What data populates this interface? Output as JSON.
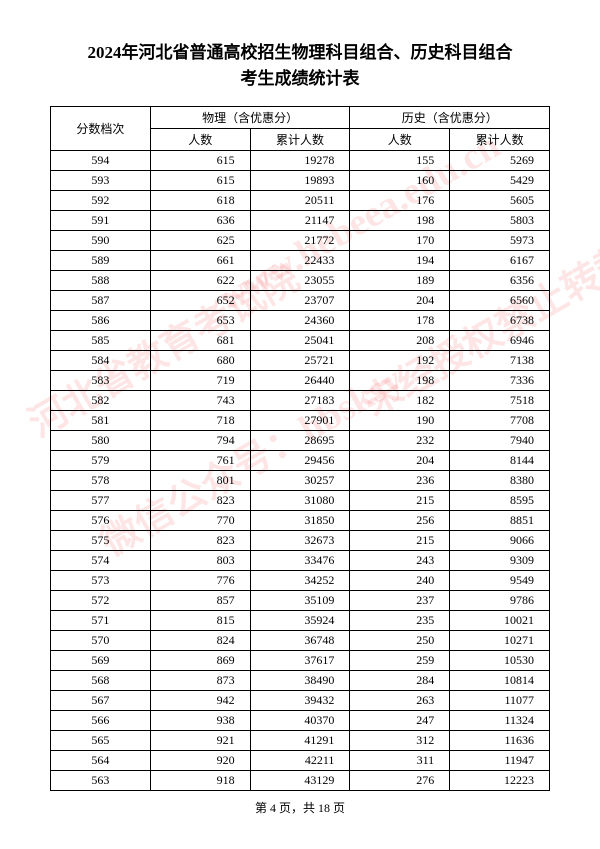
{
  "title_line1": "2024年河北省普通高校招生物理科目组合、历史科目组合",
  "title_line2": "考生成绩统计表",
  "header": {
    "score_level": "分数档次",
    "physics": "物理（含优惠分）",
    "history": "历史（含优惠分）",
    "count": "人数",
    "cumulative": "累计人数"
  },
  "rows": [
    {
      "score": "594",
      "p_count": "615",
      "p_cum": "19278",
      "h_count": "155",
      "h_cum": "5269"
    },
    {
      "score": "593",
      "p_count": "615",
      "p_cum": "19893",
      "h_count": "160",
      "h_cum": "5429"
    },
    {
      "score": "592",
      "p_count": "618",
      "p_cum": "20511",
      "h_count": "176",
      "h_cum": "5605"
    },
    {
      "score": "591",
      "p_count": "636",
      "p_cum": "21147",
      "h_count": "198",
      "h_cum": "5803"
    },
    {
      "score": "590",
      "p_count": "625",
      "p_cum": "21772",
      "h_count": "170",
      "h_cum": "5973"
    },
    {
      "score": "589",
      "p_count": "661",
      "p_cum": "22433",
      "h_count": "194",
      "h_cum": "6167"
    },
    {
      "score": "588",
      "p_count": "622",
      "p_cum": "23055",
      "h_count": "189",
      "h_cum": "6356"
    },
    {
      "score": "587",
      "p_count": "652",
      "p_cum": "23707",
      "h_count": "204",
      "h_cum": "6560"
    },
    {
      "score": "586",
      "p_count": "653",
      "p_cum": "24360",
      "h_count": "178",
      "h_cum": "6738"
    },
    {
      "score": "585",
      "p_count": "681",
      "p_cum": "25041",
      "h_count": "208",
      "h_cum": "6946"
    },
    {
      "score": "584",
      "p_count": "680",
      "p_cum": "25721",
      "h_count": "192",
      "h_cum": "7138"
    },
    {
      "score": "583",
      "p_count": "719",
      "p_cum": "26440",
      "h_count": "198",
      "h_cum": "7336"
    },
    {
      "score": "582",
      "p_count": "743",
      "p_cum": "27183",
      "h_count": "182",
      "h_cum": "7518"
    },
    {
      "score": "581",
      "p_count": "718",
      "p_cum": "27901",
      "h_count": "190",
      "h_cum": "7708"
    },
    {
      "score": "580",
      "p_count": "794",
      "p_cum": "28695",
      "h_count": "232",
      "h_cum": "7940"
    },
    {
      "score": "579",
      "p_count": "761",
      "p_cum": "29456",
      "h_count": "204",
      "h_cum": "8144"
    },
    {
      "score": "578",
      "p_count": "801",
      "p_cum": "30257",
      "h_count": "236",
      "h_cum": "8380"
    },
    {
      "score": "577",
      "p_count": "823",
      "p_cum": "31080",
      "h_count": "215",
      "h_cum": "8595"
    },
    {
      "score": "576",
      "p_count": "770",
      "p_cum": "31850",
      "h_count": "256",
      "h_cum": "8851"
    },
    {
      "score": "575",
      "p_count": "823",
      "p_cum": "32673",
      "h_count": "215",
      "h_cum": "9066"
    },
    {
      "score": "574",
      "p_count": "803",
      "p_cum": "33476",
      "h_count": "243",
      "h_cum": "9309"
    },
    {
      "score": "573",
      "p_count": "776",
      "p_cum": "34252",
      "h_count": "240",
      "h_cum": "9549"
    },
    {
      "score": "572",
      "p_count": "857",
      "p_cum": "35109",
      "h_count": "237",
      "h_cum": "9786"
    },
    {
      "score": "571",
      "p_count": "815",
      "p_cum": "35924",
      "h_count": "235",
      "h_cum": "10021"
    },
    {
      "score": "570",
      "p_count": "824",
      "p_cum": "36748",
      "h_count": "250",
      "h_cum": "10271"
    },
    {
      "score": "569",
      "p_count": "869",
      "p_cum": "37617",
      "h_count": "259",
      "h_cum": "10530"
    },
    {
      "score": "568",
      "p_count": "873",
      "p_cum": "38490",
      "h_count": "284",
      "h_cum": "10814"
    },
    {
      "score": "567",
      "p_count": "942",
      "p_cum": "39432",
      "h_count": "263",
      "h_cum": "11077"
    },
    {
      "score": "566",
      "p_count": "938",
      "p_cum": "40370",
      "h_count": "247",
      "h_cum": "11324"
    },
    {
      "score": "565",
      "p_count": "921",
      "p_cum": "41291",
      "h_count": "312",
      "h_cum": "11636"
    },
    {
      "score": "564",
      "p_count": "920",
      "p_cum": "42211",
      "h_count": "311",
      "h_cum": "11947"
    },
    {
      "score": "563",
      "p_count": "918",
      "p_cum": "43129",
      "h_count": "276",
      "h_cum": "12223"
    }
  ],
  "footer": "第 4 页，共 18 页",
  "watermarks": {
    "wm1": "河北省教育考试院",
    "wm2": "www.hebeea.edu.cn",
    "wm3": "微信公众号：hbsksy",
    "wm4": "未经授权禁止转载使用",
    "wm5": "未经授权"
  }
}
